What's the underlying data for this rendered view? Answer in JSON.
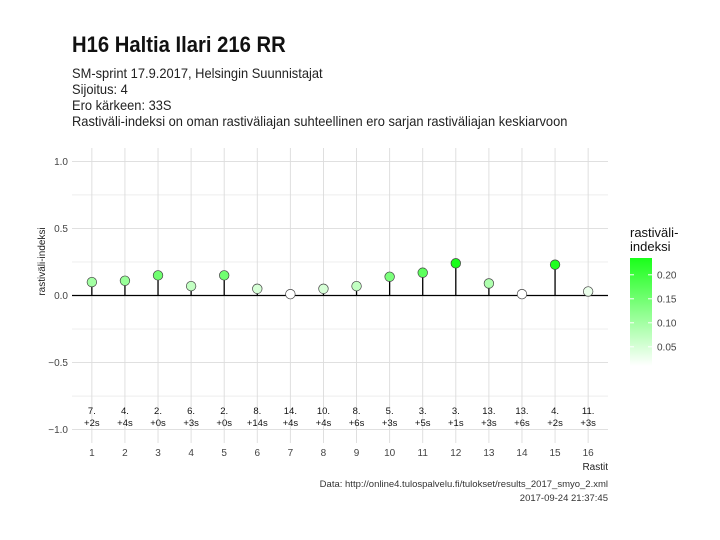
{
  "header": {
    "title": "H16 Haltia Ilari 216 RR",
    "subtitle_lines": [
      "SM-sprint 17.9.2017, Helsingin Suunnistajat",
      "Sijoitus: 4",
      "Ero kärkeen: 33S",
      "Rastiväli-indeksi on oman rastiväliajan suhteellinen ero sarjan rastiväliajan keskiarvoon"
    ]
  },
  "caption": {
    "line1": "Data: http://online4.tulospalvelu.fi/tulokset/results_2017_smyo_2.xml",
    "line2": "2017-09-24 21:37:45"
  },
  "colors": {
    "low": "#ffffff",
    "high": "#1aff1a",
    "stem": "#000000",
    "grid": "#dcdcdc",
    "zero_line": "#000000"
  },
  "chart_data": {
    "type": "lollipop",
    "xlabel": "Rastit",
    "ylabel": "rastiväli-indeksi",
    "xlim": [
      0.4,
      16.6
    ],
    "ylim": [
      -1.1,
      1.1
    ],
    "x_ticks": [
      1,
      2,
      3,
      4,
      5,
      6,
      7,
      8,
      9,
      10,
      11,
      12,
      13,
      14,
      15,
      16
    ],
    "y_ticks": [
      -1.0,
      -0.5,
      0.0,
      0.5,
      1.0
    ],
    "y_tick_labels": [
      "−1.0",
      "−0.5",
      "0.0",
      "0.5",
      "1.0"
    ],
    "grid": true,
    "legend": {
      "title_lines": [
        "rastiväli-",
        "indeksi"
      ],
      "position": "right",
      "ticks": [
        0.05,
        0.1,
        0.15,
        0.2
      ],
      "tick_labels": [
        "0.05",
        "0.10",
        "0.15",
        "0.20"
      ],
      "range": [
        0.01,
        0.235
      ]
    },
    "points": [
      {
        "x": 1,
        "y": 0.1,
        "rank": "7.",
        "diff": "+2s"
      },
      {
        "x": 2,
        "y": 0.11,
        "rank": "4.",
        "diff": "+4s"
      },
      {
        "x": 3,
        "y": 0.15,
        "rank": "2.",
        "diff": "+0s"
      },
      {
        "x": 4,
        "y": 0.07,
        "rank": "6.",
        "diff": "+3s"
      },
      {
        "x": 5,
        "y": 0.15,
        "rank": "2.",
        "diff": "+0s"
      },
      {
        "x": 6,
        "y": 0.05,
        "rank": "8.",
        "diff": "+14s"
      },
      {
        "x": 7,
        "y": 0.01,
        "rank": "14.",
        "diff": "+4s"
      },
      {
        "x": 8,
        "y": 0.05,
        "rank": "10.",
        "diff": "+4s"
      },
      {
        "x": 9,
        "y": 0.07,
        "rank": "8.",
        "diff": "+6s"
      },
      {
        "x": 10,
        "y": 0.14,
        "rank": "5.",
        "diff": "+3s"
      },
      {
        "x": 11,
        "y": 0.17,
        "rank": "3.",
        "diff": "+5s"
      },
      {
        "x": 12,
        "y": 0.24,
        "rank": "3.",
        "diff": "+1s"
      },
      {
        "x": 13,
        "y": 0.09,
        "rank": "13.",
        "diff": "+3s"
      },
      {
        "x": 14,
        "y": 0.01,
        "rank": "13.",
        "diff": "+6s"
      },
      {
        "x": 15,
        "y": 0.23,
        "rank": "4.",
        "diff": "+2s"
      },
      {
        "x": 16,
        "y": 0.03,
        "rank": "11.",
        "diff": "+3s"
      }
    ]
  }
}
